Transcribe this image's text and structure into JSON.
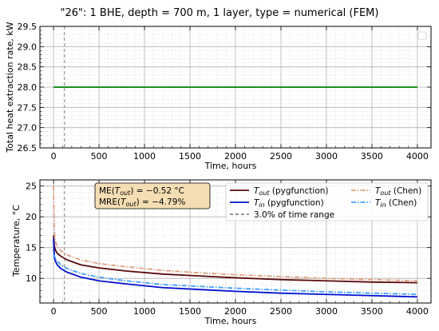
{
  "title": "\"26\": 1 BHE, depth = 700 m, 1 layer, type = numerical (FEM)",
  "chart_data": [
    {
      "type": "line",
      "xlabel": "Time, hours",
      "ylabel": "Total heat extraction rate, kW",
      "xlim": [
        -150,
        4150
      ],
      "ylim": [
        26.5,
        29.5
      ],
      "xticks": [
        "0",
        "500",
        "1000",
        "1500",
        "2000",
        "2500",
        "3000",
        "3500",
        "4000"
      ],
      "yticks": [
        "26.5",
        "27.0",
        "27.5",
        "28.0",
        "28.5",
        "29.0",
        "29.5"
      ],
      "grid": true,
      "vline_x": 120,
      "series": [
        {
          "color": "#008000",
          "x": [
            0,
            4000
          ],
          "y": [
            28.0,
            28.0
          ]
        }
      ]
    },
    {
      "type": "line",
      "xlabel": "Time, hours",
      "ylabel": "Temperature, °C",
      "xlim": [
        -150,
        4150
      ],
      "ylim": [
        6,
        26
      ],
      "xticks": [
        "0",
        "500",
        "1000",
        "1500",
        "2000",
        "2500",
        "3000",
        "3500",
        "4000"
      ],
      "yticks": [
        "10",
        "15",
        "20",
        "25"
      ],
      "grid": true,
      "vline_x": 120,
      "legend_position": "top-right",
      "annotation": {
        "line1_pre": "ME(",
        "line1_var": "T",
        "line1_sub": "out",
        "line1_post": ") = −0.52 °C",
        "line2_pre": "MRE(",
        "line2_var": "T",
        "line2_sub": "out",
        "line2_post": ") = −4.79%"
      },
      "legend": [
        {
          "var": "T",
          "sub": "out",
          "text": " (pygfunction)",
          "color": "#5a0a0a",
          "dash": "solid"
        },
        {
          "var": "T",
          "sub": "in",
          "text": " (pygfunction)",
          "color": "#0010d0",
          "dash": "solid"
        },
        {
          "var": "",
          "sub": "",
          "text": "3.0% of time range",
          "color": "#808080",
          "dash": "dashed"
        },
        {
          "var": "T",
          "sub": "out",
          "text": " (Chen)",
          "color": "#e0a080",
          "dash": "dashdot"
        },
        {
          "var": "T",
          "sub": "in",
          "text": " (Chen)",
          "color": "#40a0ff",
          "dash": "dashdot"
        }
      ],
      "series": [
        {
          "color": "#5a0a0a",
          "dash": "solid",
          "x": [
            0,
            5,
            10,
            20,
            40,
            80,
            150,
            300,
            500,
            800,
            1200,
            1600,
            2000,
            2500,
            3000,
            3500,
            4000
          ],
          "y": [
            17.0,
            16.0,
            15.2,
            14.6,
            14.1,
            13.6,
            13.0,
            12.2,
            11.7,
            11.2,
            10.7,
            10.4,
            10.1,
            9.8,
            9.6,
            9.4,
            9.3
          ]
        },
        {
          "color": "#0010d0",
          "dash": "solid",
          "x": [
            0,
            5,
            10,
            20,
            40,
            80,
            150,
            300,
            500,
            800,
            1200,
            1600,
            2000,
            2500,
            3000,
            3500,
            4000
          ],
          "y": [
            16.5,
            14.5,
            13.5,
            12.8,
            12.2,
            11.6,
            11.0,
            10.2,
            9.6,
            9.1,
            8.5,
            8.2,
            7.9,
            7.6,
            7.4,
            7.2,
            7.0
          ]
        },
        {
          "color": "#e0a080",
          "dash": "dashdot",
          "x": [
            0,
            5,
            10,
            20,
            40,
            80,
            150,
            300,
            500,
            800,
            1200,
            1600,
            2000,
            2500,
            3000,
            3500,
            4000
          ],
          "y": [
            25.0,
            20.0,
            17.5,
            16.0,
            15.2,
            14.5,
            13.8,
            13.0,
            12.4,
            11.9,
            11.3,
            10.9,
            10.6,
            10.3,
            10.0,
            9.8,
            9.6
          ]
        },
        {
          "color": "#40a0ff",
          "dash": "dashdot",
          "x": [
            0,
            5,
            10,
            20,
            40,
            80,
            150,
            300,
            500,
            800,
            1200,
            1600,
            2000,
            2500,
            3000,
            3500,
            4000
          ],
          "y": [
            13.5,
            13.8,
            13.6,
            13.2,
            12.8,
            12.2,
            11.6,
            10.8,
            10.2,
            9.6,
            9.0,
            8.7,
            8.4,
            8.1,
            7.8,
            7.6,
            7.4
          ]
        }
      ]
    }
  ]
}
